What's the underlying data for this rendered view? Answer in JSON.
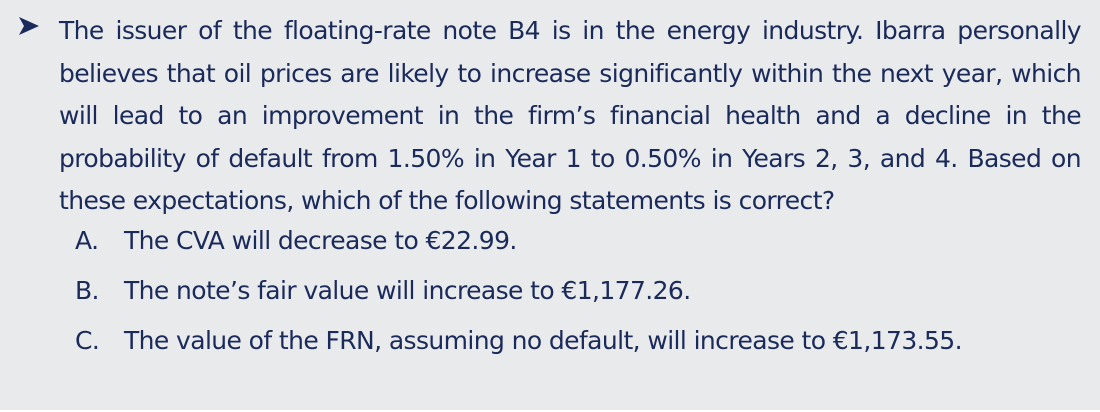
{
  "question": {
    "stem": "The issuer of the floating-rate note B4 is in the energy industry. Ibarra personally believes that oil prices are likely to increase significantly within the next year, which will lead to an improvement in the firm’s financial health and a decline in the probability of default from 1.50% in Year 1 to 0.50% in Years 2, 3, and 4. Based on these expectations, which of the following statements is correct?",
    "options": [
      {
        "letter": "A.",
        "text": "The CVA will decrease to €22.99."
      },
      {
        "letter": "B.",
        "text": "The note’s fair value will increase to €1,177.26."
      },
      {
        "letter": "C.",
        "text": "The value of the FRN, assuming no default, will increase to €1,173.55."
      }
    ]
  }
}
